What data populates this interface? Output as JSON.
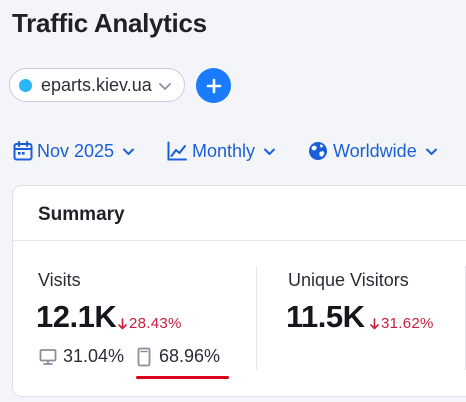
{
  "header": {
    "title": "Traffic Analytics"
  },
  "domain": {
    "value": "eparts.kiev.ua",
    "dot_color": "#29b6f6"
  },
  "add_button": {
    "icon": "plus-icon"
  },
  "filters": {
    "date": {
      "label": "Nov 2025",
      "icon": "calendar-icon"
    },
    "period": {
      "label": "Monthly",
      "icon": "line-chart-icon"
    },
    "region": {
      "label": "Worldwide",
      "icon": "globe-icon"
    }
  },
  "summary": {
    "title": "Summary",
    "visits": {
      "label": "Visits",
      "value": "12.1K",
      "change": "28.43%",
      "desktop_share": "31.04%",
      "mobile_share": "68.96%"
    },
    "unique_visitors": {
      "label": "Unique Visitors",
      "value": "11.5K",
      "change": "31.62%"
    }
  },
  "colors": {
    "accent": "#1a7bff",
    "link": "#1b5fd6",
    "negative": "#c81d3b",
    "highlight": "#d9001b"
  }
}
